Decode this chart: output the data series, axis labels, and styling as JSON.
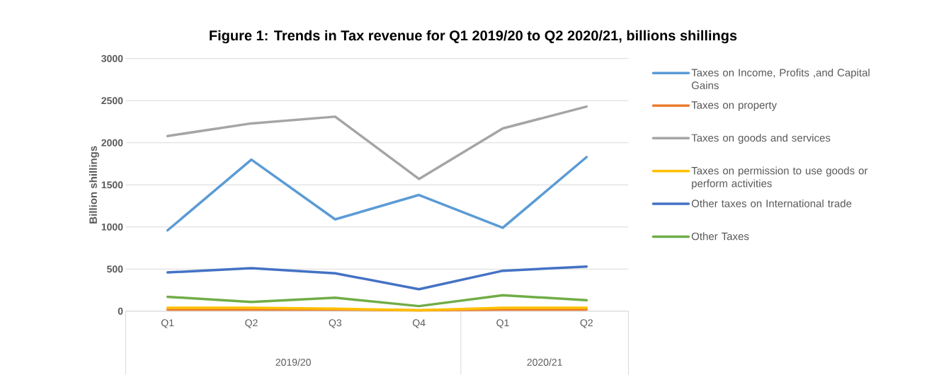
{
  "chart_data": {
    "type": "line",
    "title": "Figure 1: Trends in Tax revenue for Q1 2019/20 to Q2 2020/21, billions shillings",
    "ylabel": "Billion shillings",
    "categories": [
      "Q1",
      "Q2",
      "Q3",
      "Q4",
      "Q1",
      "Q2"
    ],
    "annotations": [
      "2019/20",
      "2020/21"
    ],
    "series": [
      {
        "name": "Taxes on Income, Profits ,and Capital Gains",
        "color": "#5b9bd5",
        "values": [
          960,
          1800,
          1090,
          1380,
          990,
          1830
        ]
      },
      {
        "name": "Taxes on property",
        "color": "#ed7d31",
        "values": [
          20,
          20,
          20,
          10,
          20,
          20
        ]
      },
      {
        "name": "Taxes on goods and services",
        "color": "#a5a5a5",
        "values": [
          2080,
          2230,
          2310,
          1570,
          2170,
          2430
        ]
      },
      {
        "name": "Taxes on permission to use goods or perform activities",
        "color": "#ffc000",
        "values": [
          40,
          40,
          30,
          10,
          40,
          40
        ]
      },
      {
        "name": "Other taxes on International trade",
        "color": "#4472c4",
        "values": [
          460,
          510,
          450,
          260,
          480,
          530
        ]
      },
      {
        "name": "Other Taxes",
        "color": "#70ad47",
        "values": [
          170,
          110,
          160,
          60,
          190,
          130
        ]
      }
    ],
    "ylim": [
      0,
      3000
    ],
    "yticks": [
      0,
      500,
      1000,
      1500,
      2000,
      2500,
      3000
    ],
    "grid": "y",
    "legend": "right",
    "marker": "none",
    "line_style": "solid"
  }
}
